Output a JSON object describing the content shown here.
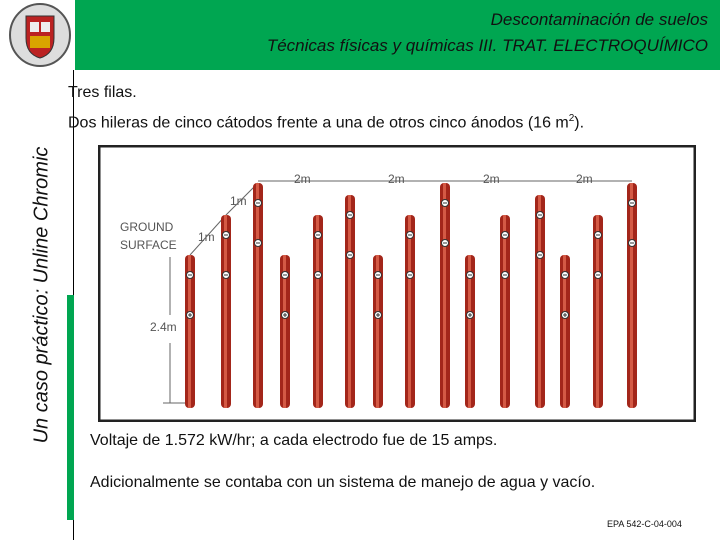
{
  "header": {
    "line1": "Descontaminación de suelos",
    "line2": "Técnicas físicas y químicas III. TRAT. ELECTROQUÍMICO"
  },
  "side_title": "Un caso práctico: Unline Chromic",
  "body": {
    "line1": "Tres filas.",
    "line2": {
      "text": "Dos hileras de cinco cátodos frente a una de otros cinco ánodos (16 m",
      "superscript": "2",
      "text_after": ")."
    }
  },
  "figure": {
    "ground_label_1": "GROUND",
    "ground_label_2": "SURFACE",
    "spacing_labels": [
      "2m",
      "2m",
      "2m",
      "2m"
    ],
    "row_labels": [
      "1m",
      "1m"
    ],
    "depth_label": "2.4m"
  },
  "notes": {
    "voltage": "Voltaje de 1.572 kW/hr;  a cada electrodo fue de 15 amps.",
    "additional": "Adicionalmente se contaba con un sistema de manejo de agua y vacío."
  },
  "source": "EPA 542-C-04-004"
}
